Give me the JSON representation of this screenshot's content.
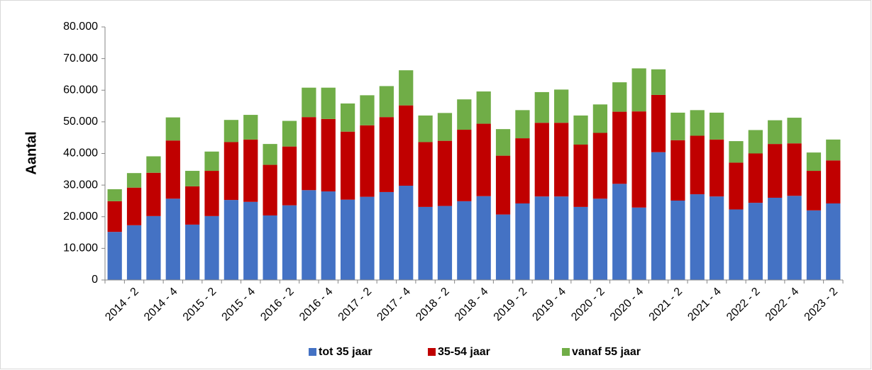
{
  "chart_data": {
    "type": "stacked_bar",
    "y_label": "Aantal",
    "categories": [
      null,
      "2014 - 2",
      null,
      "2014 - 4",
      null,
      "2015 - 2",
      null,
      "2015 - 4",
      null,
      "2016 - 2",
      null,
      "2016 - 4",
      null,
      "2017 - 2",
      null,
      "2017 - 4",
      null,
      "2018 - 2",
      null,
      "2018 - 4",
      null,
      "2019 - 2",
      null,
      "2019 - 4",
      null,
      "2020 - 2",
      null,
      "2020 - 4",
      null,
      "2021 - 2",
      null,
      "2021 - 4",
      null,
      "2022 - 2",
      null,
      "2022 - 4",
      null,
      "2023 - 2"
    ],
    "series": [
      {
        "name": "tot 35 jaar",
        "color": "#4472c4",
        "values": [
          15200,
          17300,
          20200,
          25700,
          17500,
          20200,
          25300,
          24700,
          20400,
          23600,
          28400,
          28000,
          25400,
          26300,
          27800,
          29800,
          23100,
          23400,
          24900,
          26500,
          20700,
          24200,
          26400,
          26400,
          23100,
          25700,
          30400,
          22900,
          40400,
          25100,
          27100,
          26400,
          22300,
          24400,
          26000,
          26600,
          22000,
          24200
        ]
      },
      {
        "name": "35-54 jaar",
        "color": "#c00000",
        "values": [
          9700,
          11900,
          13700,
          18400,
          12100,
          14300,
          18300,
          19700,
          16000,
          18600,
          23100,
          22900,
          21500,
          22600,
          23700,
          25400,
          20500,
          20600,
          22600,
          22900,
          18600,
          20600,
          23300,
          23300,
          19700,
          20800,
          22800,
          30400,
          18100,
          19100,
          18500,
          18000,
          14800,
          15600,
          17000,
          16600,
          12500,
          13600
        ]
      },
      {
        "name": "vanaf 55 jaar",
        "color": "#70ad47",
        "values": [
          3800,
          4600,
          5200,
          7300,
          4900,
          6100,
          7000,
          7800,
          6600,
          8100,
          9300,
          9900,
          8900,
          9500,
          9800,
          11100,
          8400,
          8800,
          9600,
          10200,
          8400,
          8900,
          9700,
          10500,
          9200,
          9000,
          9300,
          13600,
          8100,
          8700,
          8100,
          8500,
          6800,
          7400,
          7500,
          8100,
          5800,
          6600
        ]
      }
    ],
    "ylim": [
      0,
      80000
    ],
    "yticks": [
      0,
      {
        "value": 10000,
        "label": "10.000"
      },
      {
        "value": 20000,
        "label": "20.000"
      },
      {
        "value": 30000,
        "label": "30.000"
      },
      {
        "value": 40000,
        "label": "40.000"
      },
      {
        "value": 50000,
        "label": "50.000"
      },
      {
        "value": 60000,
        "label": "60.000"
      },
      {
        "value": 70000,
        "label": "70.000"
      },
      {
        "value": 80000,
        "label": "80.000"
      }
    ],
    "grid": false,
    "legend": "bottom"
  }
}
